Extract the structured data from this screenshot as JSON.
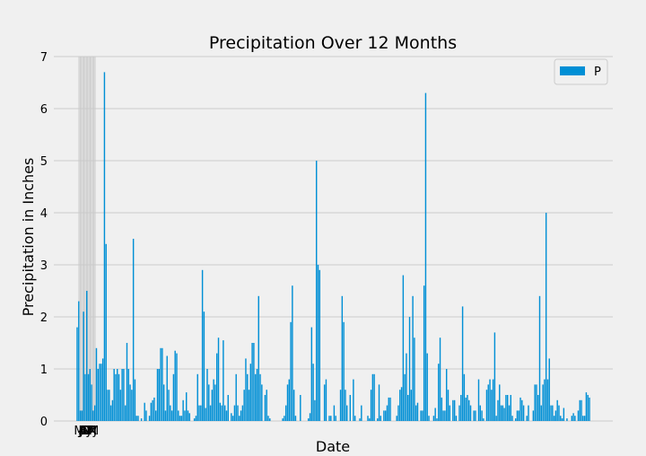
{
  "chart_data": {
    "type": "bar",
    "title": "Precipitation Over 12 Months",
    "xlabel": "Date",
    "ylabel": "Precipitation in Inches",
    "ylim": [
      0,
      7
    ],
    "yticks": [
      0,
      1,
      2,
      3,
      4,
      5,
      6,
      7
    ],
    "grid": true,
    "legend_position": "top-right",
    "colors": {
      "bar": "#008fd5",
      "grid": "#cbcbcb",
      "background": "#f0f0f0"
    },
    "series": [
      {
        "name": "P",
        "values": [
          1.8,
          2.3,
          0.2,
          0.2,
          2.1,
          0.9,
          2.5,
          0.9,
          1.0,
          0.7,
          0.2,
          0.3,
          1.4,
          1.0,
          1.1,
          1.1,
          1.2,
          6.7,
          3.4,
          0.6,
          0.6,
          0.3,
          0.4,
          1.0,
          0.9,
          1.0,
          0.9,
          0.6,
          1.0,
          1.0,
          0.3,
          1.5,
          1.0,
          0.7,
          0.6,
          3.5,
          0.8,
          0.1,
          0.1,
          0.0,
          0.05,
          0.0,
          0.35,
          0.2,
          0.0,
          0.1,
          0.35,
          0.4,
          0.45,
          0.2,
          1.0,
          1.0,
          1.4,
          1.4,
          0.7,
          0.2,
          1.25,
          0.6,
          0.3,
          0.2,
          0.9,
          1.35,
          1.3,
          0.2,
          0.1,
          0.1,
          0.4,
          0.2,
          0.55,
          0.2,
          0.15,
          0.0,
          0.0,
          0.05,
          0.1,
          0.9,
          0.3,
          0.3,
          2.9,
          2.1,
          0.25,
          1.0,
          0.7,
          0.3,
          0.6,
          0.8,
          0.7,
          1.3,
          1.6,
          0.35,
          0.3,
          1.55,
          0.3,
          0.2,
          0.5,
          0.0,
          0.15,
          0.1,
          0.3,
          0.9,
          0.3,
          0.1,
          0.2,
          0.3,
          0.6,
          1.2,
          0.9,
          0.6,
          1.1,
          1.5,
          1.5,
          0.9,
          1.0,
          2.4,
          0.9,
          0.7,
          0.0,
          0.5,
          0.6,
          0.1,
          0.05,
          0.0,
          0.0,
          0.0,
          0.0,
          0.0,
          0.0,
          0.0,
          0.05,
          0.1,
          0.3,
          0.7,
          0.8,
          1.9,
          2.6,
          0.6,
          0.1,
          0.0,
          0.0,
          0.5,
          0.0,
          0.0,
          0.0,
          0.0,
          0.05,
          0.15,
          1.8,
          1.1,
          0.4,
          5.0,
          3.0,
          2.9,
          0.0,
          0.0,
          0.7,
          0.8,
          0.0,
          0.1,
          0.1,
          0.0,
          0.3,
          0.1,
          0.0,
          0.0,
          0.6,
          2.4,
          1.9,
          0.6,
          0.3,
          0.0,
          0.5,
          0.0,
          0.8,
          0.1,
          0.0,
          0.0,
          0.05,
          0.3,
          0.0,
          0.0,
          0.0,
          0.1,
          0.05,
          0.6,
          0.9,
          0.9,
          0.0,
          0.05,
          0.7,
          0.1,
          0.0,
          0.2,
          0.2,
          0.3,
          0.45,
          0.45,
          0.0,
          0.0,
          0.0,
          0.1,
          0.3,
          0.6,
          0.65,
          2.8,
          0.9,
          1.3,
          0.5,
          2.0,
          0.6,
          2.4,
          1.6,
          0.3,
          0.35,
          0.0,
          0.2,
          0.2,
          2.6,
          6.3,
          1.3,
          0.1,
          0.0,
          0.0,
          0.1,
          0.25,
          0.05,
          1.1,
          1.6,
          0.45,
          0.2,
          0.2,
          1.0,
          0.6,
          0.3,
          0.0,
          0.4,
          0.4,
          0.1,
          0.0,
          0.3,
          0.5,
          2.2,
          0.9,
          0.45,
          0.5,
          0.4,
          0.3,
          0.0,
          0.2,
          0.2,
          0.0,
          0.8,
          0.3,
          0.2,
          0.05,
          0.0,
          0.6,
          0.7,
          0.8,
          0.6,
          0.8,
          1.7,
          0.1,
          0.4,
          0.7,
          0.3,
          0.3,
          0.25,
          0.5,
          0.5,
          0.3,
          0.5,
          0.1,
          0.0,
          0.05,
          0.2,
          0.2,
          0.45,
          0.4,
          0.3,
          0.0,
          0.1,
          0.3,
          0.0,
          0.0,
          0.2,
          0.7,
          0.7,
          0.5,
          2.4,
          0.3,
          0.7,
          0.8,
          4.0,
          0.8,
          1.2,
          0.3,
          0.3,
          0.1,
          0.2,
          0.4,
          0.3,
          0.1,
          0.05,
          0.25,
          0.0,
          0.05,
          0.0,
          0.0,
          0.1,
          0.15,
          0.1,
          0.0,
          0.2,
          0.4,
          0.4,
          0.1,
          0.1,
          0.55,
          0.5,
          0.45
        ]
      }
    ],
    "x_tick_labels": [
      "M",
      "J",
      "J",
      "A",
      "S",
      "O",
      "N",
      "D",
      "J",
      "F",
      "M",
      "A",
      "M",
      "J"
    ]
  }
}
